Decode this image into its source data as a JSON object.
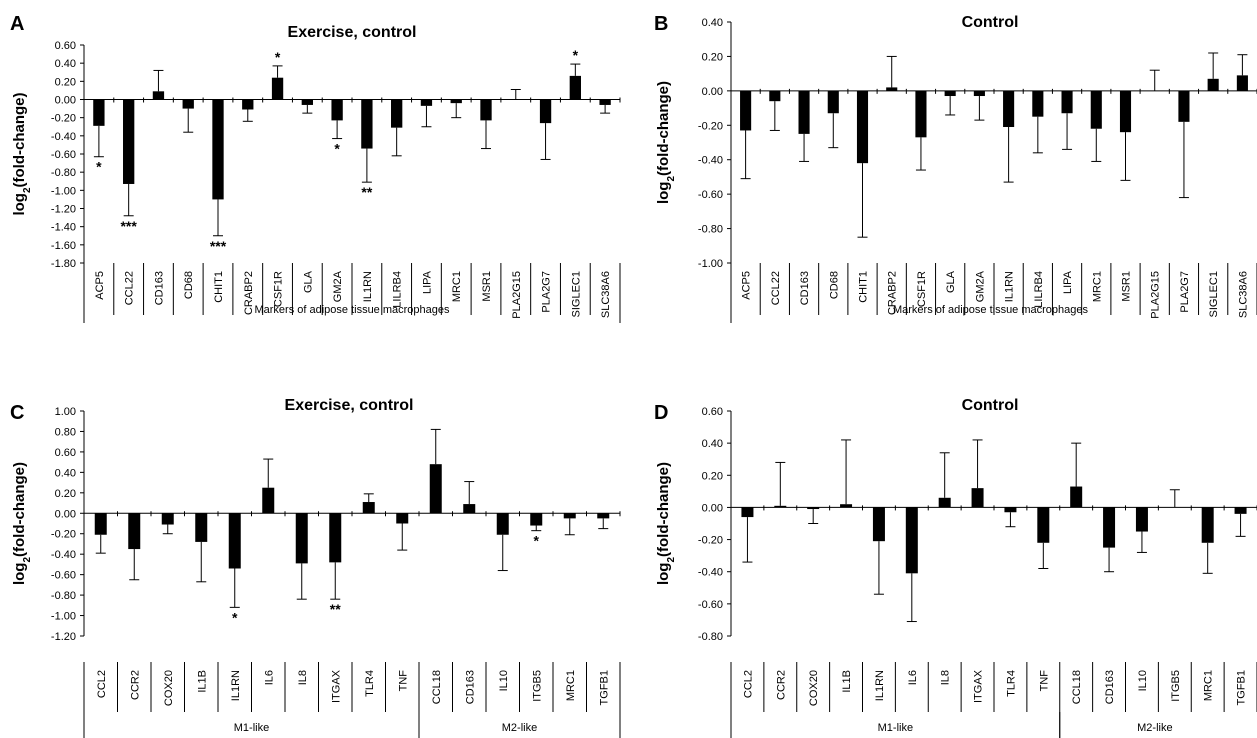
{
  "panels": [
    {
      "label": "A",
      "chart_data": {
        "type": "bar",
        "title": "Exercise, control",
        "ylabel": "log2(fold-change)",
        "ylim": [
          -1.8,
          0.6
        ],
        "ytick_step": 0.2,
        "xlabel": "",
        "categories": [
          "ACP5",
          "CCL22",
          "CD163",
          "CD68",
          "CHIT1",
          "CRABP2",
          "CSF1R",
          "GLA",
          "GM2A",
          "IL1RN",
          "LILRB4",
          "LIPA",
          "MRC1",
          "MSR1",
          "PLA2G15",
          "PLA2G7",
          "SIGLEC1",
          "SLC38A6"
        ],
        "values": [
          -0.29,
          -0.93,
          0.09,
          -0.1,
          -1.1,
          -0.11,
          0.24,
          -0.06,
          -0.23,
          -0.54,
          -0.31,
          -0.07,
          -0.04,
          -0.23,
          0.0,
          -0.26,
          0.26,
          -0.06
        ],
        "error": [
          0.34,
          0.35,
          0.23,
          0.26,
          0.4,
          0.13,
          0.13,
          0.09,
          0.2,
          0.37,
          0.31,
          0.23,
          0.16,
          0.31,
          0.11,
          0.4,
          0.13,
          0.09
        ],
        "significance": [
          "*",
          "***",
          "",
          "",
          "***",
          "",
          "*",
          "",
          "*",
          "**",
          "",
          "",
          "",
          "",
          "",
          "",
          "*",
          ""
        ],
        "groups": [
          {
            "label": "Markers of adipose tissue macrophages",
            "start": 0,
            "end": 17
          }
        ]
      }
    },
    {
      "label": "B",
      "chart_data": {
        "type": "bar",
        "title": "Control",
        "ylabel": "log2(fold-change)",
        "ylim": [
          -1.0,
          0.4
        ],
        "ytick_step": 0.2,
        "xlabel": "",
        "categories": [
          "ACP5",
          "CCL22",
          "CD163",
          "CD68",
          "CHIT1",
          "CRABP2",
          "CSF1R",
          "GLA",
          "GM2A",
          "IL1RN",
          "LILRB4",
          "LIPA",
          "MRC1",
          "MSR1",
          "PLA2G15",
          "PLA2G7",
          "SIGLEC1",
          "SLC38A6"
        ],
        "values": [
          -0.23,
          -0.06,
          -0.25,
          -0.13,
          -0.42,
          0.02,
          -0.27,
          -0.03,
          -0.03,
          -0.21,
          -0.15,
          -0.13,
          -0.22,
          -0.24,
          0.0,
          -0.18,
          0.07,
          0.09
        ],
        "error": [
          0.28,
          0.17,
          0.16,
          0.2,
          0.43,
          0.18,
          0.19,
          0.11,
          0.14,
          0.32,
          0.21,
          0.21,
          0.19,
          0.28,
          0.12,
          0.44,
          0.15,
          0.12
        ],
        "significance": [
          "",
          "",
          "",
          "",
          "",
          "",
          "",
          "",
          "",
          "",
          "",
          "",
          "",
          "",
          "",
          "",
          "",
          ""
        ],
        "groups": [
          {
            "label": "Markers of adipose tissue macrophages",
            "start": 0,
            "end": 17
          }
        ]
      }
    },
    {
      "label": "C",
      "chart_data": {
        "type": "bar",
        "title": "Exercise, control",
        "ylabel": "log2(fold-change)",
        "ylim": [
          -1.2,
          1.0
        ],
        "ytick_step": 0.2,
        "xlabel": "",
        "categories": [
          "CCL2",
          "CCR2",
          "COX20",
          "IL1B",
          "IL1RN",
          "IL6",
          "IL8",
          "ITGAX",
          "TLR4",
          "TNF",
          "CCL18",
          "CD163",
          "IL10",
          "ITGB5",
          "MRC1",
          "TGFB1"
        ],
        "values": [
          -0.21,
          -0.35,
          -0.11,
          -0.28,
          -0.54,
          0.25,
          -0.49,
          -0.48,
          0.11,
          -0.1,
          0.48,
          0.09,
          -0.21,
          -0.12,
          -0.05,
          -0.05
        ],
        "error": [
          0.18,
          0.3,
          0.09,
          0.39,
          0.38,
          0.28,
          0.35,
          0.36,
          0.08,
          0.26,
          0.34,
          0.22,
          0.35,
          0.05,
          0.16,
          0.1
        ],
        "significance": [
          "",
          "",
          "",
          "",
          "*",
          "",
          "",
          "**",
          "",
          "",
          "",
          "",
          "",
          "*",
          "",
          ""
        ],
        "groups": [
          {
            "label": "M1-like",
            "start": 0,
            "end": 9
          },
          {
            "label": "M2-like",
            "start": 10,
            "end": 15
          }
        ]
      }
    },
    {
      "label": "D",
      "chart_data": {
        "type": "bar",
        "title": "Control",
        "ylabel": "log2(fold-change)",
        "ylim": [
          -0.8,
          0.6
        ],
        "ytick_step": 0.2,
        "xlabel": "",
        "categories": [
          "CCL2",
          "CCR2",
          "COX20",
          "IL1B",
          "IL1RN",
          "IL6",
          "IL8",
          "ITGAX",
          "TLR4",
          "TNF",
          "CCL18",
          "CD163",
          "IL10",
          "ITGB5",
          "MRC1",
          "TGFB1"
        ],
        "values": [
          -0.06,
          0.01,
          -0.01,
          0.02,
          -0.21,
          -0.41,
          0.06,
          0.12,
          -0.03,
          -0.22,
          0.13,
          -0.25,
          -0.15,
          0.0,
          -0.22,
          -0.04
        ],
        "error": [
          0.28,
          0.27,
          0.09,
          0.4,
          0.33,
          0.3,
          0.28,
          0.3,
          0.09,
          0.16,
          0.27,
          0.15,
          0.13,
          0.11,
          0.19,
          0.14
        ],
        "significance": [
          "",
          "",
          "",
          "",
          "",
          "",
          "",
          "",
          "",
          "",
          "",
          "",
          "",
          "",
          "",
          ""
        ],
        "groups": [
          {
            "label": "M1-like",
            "start": 0,
            "end": 9
          },
          {
            "label": "M2-like",
            "start": 10,
            "end": 15
          }
        ]
      }
    }
  ],
  "colors": {
    "bar": "#000000",
    "axis": "#000000",
    "text": "#000000"
  }
}
